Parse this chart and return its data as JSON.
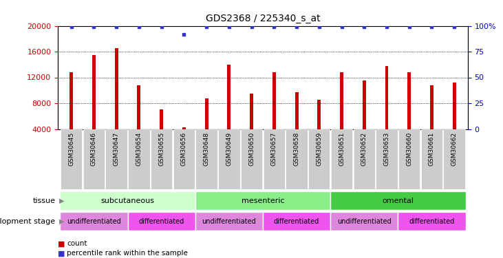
{
  "title": "GDS2368 / 225340_s_at",
  "samples": [
    "GSM30645",
    "GSM30646",
    "GSM30647",
    "GSM30654",
    "GSM30655",
    "GSM30656",
    "GSM30648",
    "GSM30649",
    "GSM30650",
    "GSM30657",
    "GSM30658",
    "GSM30659",
    "GSM30651",
    "GSM30652",
    "GSM30653",
    "GSM30660",
    "GSM30661",
    "GSM30662"
  ],
  "counts": [
    12800,
    15500,
    16500,
    10800,
    7000,
    4300,
    8800,
    14000,
    9500,
    12800,
    9700,
    8500,
    12800,
    11500,
    13800,
    12800,
    10800,
    11200
  ],
  "percentiles": [
    99,
    99,
    99,
    99,
    99,
    92,
    99,
    99,
    99,
    99,
    99,
    99,
    99,
    99,
    99,
    99,
    99,
    99
  ],
  "bar_color": "#cc0000",
  "dot_color": "#3333cc",
  "ylim_left": [
    4000,
    20000
  ],
  "ylim_right": [
    0,
    100
  ],
  "yticks_left": [
    4000,
    8000,
    12000,
    16000,
    20000
  ],
  "yticks_right": [
    0,
    25,
    50,
    75,
    100
  ],
  "tissue_groups": [
    {
      "label": "subcutaneous",
      "start": 0,
      "end": 6,
      "color": "#ccffcc"
    },
    {
      "label": "mesenteric",
      "start": 6,
      "end": 12,
      "color": "#88ee88"
    },
    {
      "label": "omental",
      "start": 12,
      "end": 18,
      "color": "#44cc44"
    }
  ],
  "stage_groups": [
    {
      "label": "undifferentiated",
      "start": 0,
      "end": 3,
      "color": "#dd88dd"
    },
    {
      "label": "differentiated",
      "start": 3,
      "end": 6,
      "color": "#ee55ee"
    },
    {
      "label": "undifferentiated",
      "start": 6,
      "end": 9,
      "color": "#dd88dd"
    },
    {
      "label": "differentiated",
      "start": 9,
      "end": 12,
      "color": "#ee55ee"
    },
    {
      "label": "undifferentiated",
      "start": 12,
      "end": 15,
      "color": "#dd88dd"
    },
    {
      "label": "differentiated",
      "start": 15,
      "end": 18,
      "color": "#ee55ee"
    }
  ],
  "tissue_label": "tissue",
  "stage_label": "development stage",
  "legend_count": "count",
  "legend_percentile": "percentile rank within the sample",
  "bg_color": "#ffffff",
  "tick_color_left": "#cc0000",
  "tick_color_right": "#0000cc",
  "xtick_bg": "#cccccc"
}
